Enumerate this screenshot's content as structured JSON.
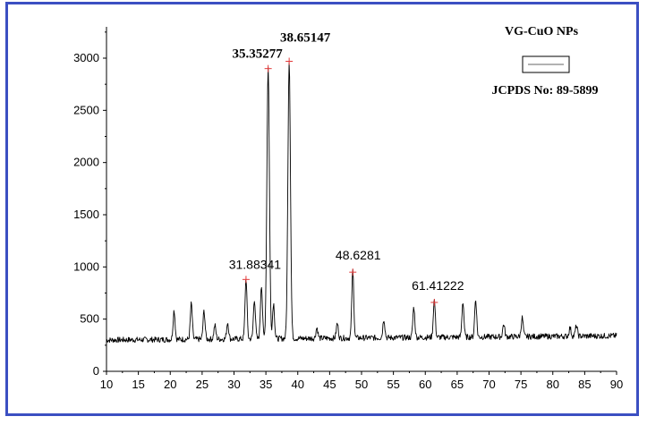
{
  "chart_data": {
    "type": "line",
    "title": "",
    "xlabel": "",
    "ylabel": "",
    "xlim": [
      10,
      90
    ],
    "ylim": [
      0,
      3300
    ],
    "x_ticks": [
      "10",
      "15",
      "20",
      "25",
      "30",
      "35",
      "40",
      "45",
      "50",
      "55",
      "60",
      "65",
      "70",
      "75",
      "80",
      "85",
      "90"
    ],
    "y_ticks": [
      "0",
      "500",
      "1000",
      "1500",
      "2000",
      "2500",
      "3000"
    ],
    "grid": false,
    "series": [
      {
        "name": "VG-CuO NPs",
        "color": "#000000",
        "baseline": 300,
        "baseline_end": 340,
        "peaks": [
          {
            "x": 20.6,
            "y": 580
          },
          {
            "x": 23.3,
            "y": 640
          },
          {
            "x": 25.3,
            "y": 570
          },
          {
            "x": 27.0,
            "y": 430
          },
          {
            "x": 29.0,
            "y": 460
          },
          {
            "x": 31.88341,
            "y": 880
          },
          {
            "x": 33.2,
            "y": 680
          },
          {
            "x": 34.3,
            "y": 820
          },
          {
            "x": 35.35277,
            "y": 2900
          },
          {
            "x": 36.2,
            "y": 640
          },
          {
            "x": 38.65147,
            "y": 2970
          },
          {
            "x": 43.0,
            "y": 400
          },
          {
            "x": 46.2,
            "y": 440
          },
          {
            "x": 48.6281,
            "y": 950
          },
          {
            "x": 53.5,
            "y": 480
          },
          {
            "x": 58.2,
            "y": 590
          },
          {
            "x": 61.41222,
            "y": 660
          },
          {
            "x": 65.9,
            "y": 640
          },
          {
            "x": 67.9,
            "y": 660
          },
          {
            "x": 72.3,
            "y": 420
          },
          {
            "x": 75.2,
            "y": 480
          },
          {
            "x": 82.7,
            "y": 380
          },
          {
            "x": 83.7,
            "y": 400
          }
        ]
      }
    ],
    "peak_labels": [
      {
        "x": 31.88341,
        "y": 880,
        "text": "31.88341",
        "bold": false
      },
      {
        "x": 35.35277,
        "y": 2900,
        "text": "35.35277",
        "bold": true
      },
      {
        "x": 38.65147,
        "y": 2970,
        "text": "38.65147",
        "bold": true
      },
      {
        "x": 48.6281,
        "y": 950,
        "text": "48.6281",
        "bold": false
      },
      {
        "x": 61.41222,
        "y": 660,
        "text": "61.41222",
        "bold": false
      }
    ],
    "legend": {
      "title": "VG-CuO NPs",
      "entry": "JCPDS No: 89-5899",
      "placement": "top-right"
    }
  }
}
